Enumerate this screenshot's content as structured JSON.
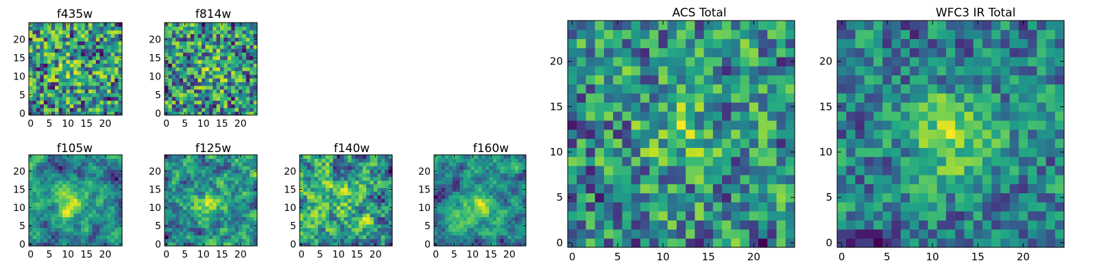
{
  "figure": {
    "colormap": "viridis",
    "colors": {
      "low": "#440154",
      "mid": "#21918c",
      "high": "#fde725"
    }
  },
  "chart_data": [
    {
      "type": "heatmap",
      "title": "f435w",
      "rows": 25,
      "cols": 25,
      "xlim": [
        0,
        24
      ],
      "ylim": [
        0,
        24
      ],
      "xticks": [
        0,
        5,
        10,
        15,
        20
      ],
      "yticks": [
        0,
        5,
        10,
        15,
        20
      ],
      "smooth": 0.05,
      "blob": {
        "x": 11,
        "y": 11,
        "strength": 0.15
      },
      "seed": 11
    },
    {
      "type": "heatmap",
      "title": "f814w",
      "rows": 25,
      "cols": 25,
      "xlim": [
        0,
        24
      ],
      "ylim": [
        0,
        24
      ],
      "xticks": [
        0,
        5,
        10,
        15,
        20
      ],
      "yticks": [
        0,
        5,
        10,
        15,
        20
      ],
      "smooth": 0.1,
      "blob": {
        "x": 12,
        "y": 12,
        "strength": 0.2
      },
      "seed": 23
    },
    {
      "type": "heatmap",
      "title": "f105w",
      "rows": 25,
      "cols": 25,
      "xlim": [
        0,
        24
      ],
      "ylim": [
        0,
        24
      ],
      "xticks": [
        0,
        5,
        10,
        15,
        20
      ],
      "yticks": [
        0,
        5,
        10,
        15,
        20
      ],
      "smooth": 0.55,
      "blob": {
        "x": 11,
        "y": 11,
        "strength": 0.35
      },
      "seed": 37
    },
    {
      "type": "heatmap",
      "title": "f125w",
      "rows": 25,
      "cols": 25,
      "xlim": [
        0,
        24
      ],
      "ylim": [
        0,
        24
      ],
      "xticks": [
        0,
        5,
        10,
        15,
        20
      ],
      "yticks": [
        0,
        5,
        10,
        15,
        20
      ],
      "smooth": 0.45,
      "blob": {
        "x": 12,
        "y": 11,
        "strength": 0.3
      },
      "seed": 41
    },
    {
      "type": "heatmap",
      "title": "f140w",
      "rows": 25,
      "cols": 25,
      "xlim": [
        0,
        24
      ],
      "ylim": [
        0,
        24
      ],
      "xticks": [
        0,
        5,
        10,
        15,
        20
      ],
      "yticks": [
        0,
        5,
        10,
        15,
        20
      ],
      "smooth": 0.4,
      "blob": {
        "x": 12,
        "y": 12,
        "strength": 0.1
      },
      "seed": 53
    },
    {
      "type": "heatmap",
      "title": "f160w",
      "rows": 25,
      "cols": 25,
      "xlim": [
        0,
        24
      ],
      "ylim": [
        0,
        24
      ],
      "xticks": [
        0,
        5,
        10,
        15,
        20
      ],
      "yticks": [
        0,
        5,
        10,
        15,
        20
      ],
      "smooth": 0.55,
      "blob": {
        "x": 11,
        "y": 10,
        "strength": 0.3
      },
      "seed": 67
    },
    {
      "type": "heatmap",
      "title": "ACS Total",
      "rows": 25,
      "cols": 25,
      "xlim": [
        0,
        24
      ],
      "ylim": [
        0,
        24
      ],
      "xticks": [
        0,
        5,
        10,
        15,
        20
      ],
      "yticks": [
        0,
        5,
        10,
        15,
        20
      ],
      "smooth": 0.1,
      "blob": {
        "x": 12,
        "y": 12,
        "strength": 0.25
      },
      "seed": 79
    },
    {
      "type": "heatmap",
      "title": "WFC3 IR Total",
      "rows": 25,
      "cols": 25,
      "xlim": [
        0,
        24
      ],
      "ylim": [
        0,
        24
      ],
      "xticks": [
        0,
        5,
        10,
        15,
        20
      ],
      "yticks": [
        0,
        5,
        10,
        15,
        20
      ],
      "smooth": 0.2,
      "blob": {
        "x": 12,
        "y": 12,
        "strength": 0.55
      },
      "seed": 97
    }
  ]
}
